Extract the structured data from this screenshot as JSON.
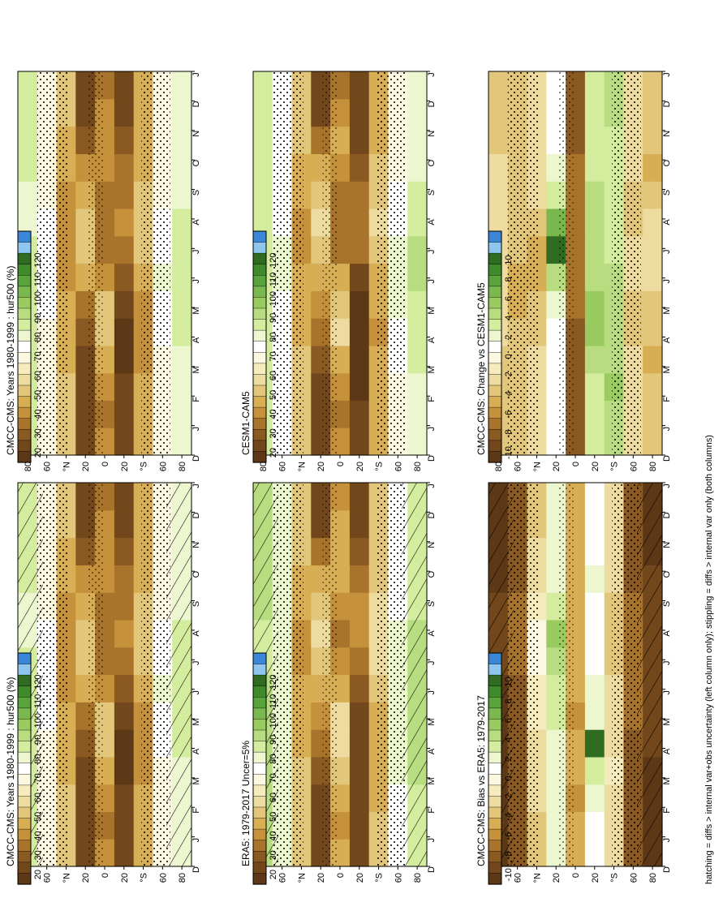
{
  "footnote": "hatching = diffs > internal var+obs uncertainty (left column only); stippling = diffs > internal var only (both columns)",
  "colorbars": [
    {
      "ticks": [
        "120",
        "110",
        "100",
        "90",
        "80",
        "70",
        "60",
        "50",
        "40",
        "30",
        "20"
      ],
      "colors": [
        "#3b86d6",
        "#8ec6ee",
        "#2f6b20",
        "#3f8a2a",
        "#58a33c",
        "#7ab84f",
        "#9acb60",
        "#b7dd80",
        "#d3ec9e",
        "#ecf7cf",
        "#ffffff",
        "#fbf7e0",
        "#f6ebbc",
        "#eddba0",
        "#e2c67a",
        "#d8ae55",
        "#c5913a",
        "#a8742b",
        "#8b5a22",
        "#72471b",
        "#5d3816"
      ]
    },
    {
      "ticks": [
        "10",
        "8",
        "6",
        "4",
        "2",
        "0",
        "-2",
        "-4",
        "-6",
        "-8",
        "-10"
      ],
      "colors": [
        "#3b86d6",
        "#8ec6ee",
        "#2f6b20",
        "#3f8a2a",
        "#58a33c",
        "#7ab84f",
        "#9acb60",
        "#b7dd80",
        "#d3ec9e",
        "#ecf7cf",
        "#ffffff",
        "#fbf7e0",
        "#f6ebbc",
        "#eddba0",
        "#e2c67a",
        "#d8ae55",
        "#c5913a",
        "#a8742b",
        "#8b5a22",
        "#72471b",
        "#5d3816"
      ]
    }
  ],
  "axes": {
    "lat_ticks": [
      "80",
      "60",
      "°N",
      "20",
      "0",
      "20",
      "°S",
      "60",
      "80"
    ],
    "month_ticks": [
      "D",
      "J",
      "F",
      "M",
      "A",
      "M",
      "J",
      "J",
      "A",
      "S",
      "O",
      "N",
      "D",
      "J"
    ]
  },
  "chart_data": [
    {
      "type": "heatmap",
      "title": "CMCC-CMS: Years 1980-1999 : hur500 (%)",
      "colorbar": 0,
      "x": [
        "J",
        "F",
        "M",
        "A",
        "M",
        "J",
        "J",
        "A",
        "S",
        "O",
        "N",
        "D"
      ],
      "y": [
        -80,
        -60,
        -40,
        -20,
        0,
        20,
        40,
        60,
        80
      ],
      "values": [
        [
          80,
          80,
          82,
          84,
          84,
          86,
          86,
          84,
          82,
          80,
          80,
          80
        ],
        [
          70,
          70,
          72,
          74,
          76,
          78,
          76,
          74,
          72,
          70,
          70,
          70
        ],
        [
          50,
          48,
          46,
          44,
          46,
          50,
          54,
          56,
          54,
          52,
          50,
          50
        ],
        [
          30,
          28,
          26,
          26,
          28,
          34,
          40,
          44,
          42,
          38,
          34,
          30
        ],
        [
          40,
          44,
          50,
          56,
          54,
          46,
          40,
          38,
          40,
          44,
          46,
          44
        ],
        [
          28,
          30,
          32,
          36,
          42,
          48,
          54,
          56,
          52,
          46,
          36,
          30
        ],
        [
          54,
          54,
          52,
          50,
          48,
          46,
          44,
          44,
          46,
          50,
          52,
          54
        ],
        [
          72,
          72,
          72,
          72,
          74,
          76,
          76,
          74,
          72,
          72,
          72,
          72
        ],
        [
          84,
          84,
          84,
          84,
          84,
          84,
          84,
          82,
          82,
          84,
          84,
          84
        ]
      ],
      "hatching": true,
      "stippling": true
    },
    {
      "type": "heatmap",
      "title": "CMCC-CMS: Years 1980-1999 : hur500 (%)",
      "colorbar": 0,
      "x": [
        "J",
        "F",
        "M",
        "A",
        "M",
        "J",
        "J",
        "A",
        "S",
        "O",
        "N",
        "D"
      ],
      "y": [
        -80,
        -60,
        -40,
        -20,
        0,
        20,
        40,
        60,
        80
      ],
      "values": [
        [
          80,
          80,
          82,
          84,
          84,
          86,
          86,
          84,
          82,
          80,
          80,
          80
        ],
        [
          70,
          70,
          72,
          74,
          76,
          78,
          76,
          74,
          72,
          70,
          70,
          70
        ],
        [
          50,
          48,
          46,
          44,
          46,
          50,
          54,
          56,
          54,
          52,
          50,
          50
        ],
        [
          30,
          28,
          26,
          26,
          28,
          34,
          40,
          44,
          42,
          38,
          34,
          30
        ],
        [
          40,
          44,
          50,
          56,
          54,
          46,
          40,
          38,
          40,
          44,
          46,
          44
        ],
        [
          28,
          30,
          32,
          36,
          42,
          48,
          54,
          56,
          52,
          46,
          36,
          30
        ],
        [
          54,
          54,
          52,
          50,
          48,
          46,
          44,
          44,
          46,
          50,
          52,
          54
        ],
        [
          72,
          72,
          72,
          72,
          74,
          76,
          76,
          74,
          72,
          72,
          72,
          72
        ],
        [
          84,
          84,
          84,
          84,
          84,
          84,
          84,
          82,
          82,
          84,
          84,
          84
        ]
      ],
      "hatching": false,
      "stippling": true
    },
    {
      "type": "heatmap",
      "title": "ERA5: 1979-2017 Uncer=5%",
      "colorbar": 0,
      "x": [
        "J",
        "F",
        "M",
        "A",
        "M",
        "J",
        "J",
        "A",
        "S",
        "O",
        "N",
        "D"
      ],
      "y": [
        -80,
        -60,
        -40,
        -20,
        0,
        20,
        40,
        60,
        80
      ],
      "values": [
        [
          86,
          86,
          88,
          88,
          88,
          90,
          90,
          88,
          86,
          86,
          86,
          86
        ],
        [
          76,
          76,
          78,
          80,
          80,
          82,
          80,
          78,
          76,
          76,
          76,
          76
        ],
        [
          54,
          52,
          50,
          48,
          50,
          54,
          58,
          60,
          58,
          56,
          54,
          54
        ],
        [
          32,
          30,
          28,
          28,
          30,
          36,
          42,
          46,
          44,
          40,
          36,
          32
        ],
        [
          44,
          48,
          54,
          60,
          58,
          50,
          44,
          42,
          44,
          48,
          50,
          48
        ],
        [
          30,
          32,
          34,
          38,
          44,
          50,
          56,
          58,
          54,
          48,
          38,
          32
        ],
        [
          56,
          56,
          54,
          52,
          50,
          48,
          46,
          46,
          48,
          52,
          54,
          56
        ],
        [
          78,
          78,
          78,
          78,
          80,
          82,
          82,
          80,
          78,
          78,
          78,
          78
        ],
        [
          90,
          90,
          90,
          90,
          88,
          88,
          86,
          86,
          88,
          90,
          90,
          90
        ]
      ],
      "hatching": true,
      "stippling": true
    },
    {
      "type": "heatmap",
      "title": "CESM1-CAM5",
      "colorbar": 0,
      "x": [
        "J",
        "F",
        "M",
        "A",
        "M",
        "J",
        "J",
        "A",
        "S",
        "O",
        "N",
        "D"
      ],
      "y": [
        -80,
        -60,
        -40,
        -20,
        0,
        20,
        40,
        60,
        80
      ],
      "values": [
        [
          82,
          82,
          84,
          86,
          86,
          88,
          88,
          86,
          84,
          82,
          82,
          82
        ],
        [
          72,
          72,
          74,
          76,
          78,
          80,
          78,
          76,
          74,
          72,
          72,
          72
        ],
        [
          52,
          50,
          48,
          46,
          48,
          52,
          56,
          58,
          56,
          54,
          52,
          52
        ],
        [
          28,
          26,
          24,
          24,
          26,
          32,
          38,
          42,
          40,
          36,
          32,
          28
        ],
        [
          42,
          46,
          52,
          58,
          56,
          48,
          42,
          40,
          42,
          46,
          48,
          46
        ],
        [
          30,
          32,
          34,
          38,
          44,
          50,
          56,
          58,
          54,
          48,
          38,
          32
        ],
        [
          56,
          56,
          54,
          52,
          50,
          48,
          46,
          46,
          48,
          52,
          54,
          56
        ],
        [
          74,
          74,
          74,
          74,
          76,
          78,
          78,
          76,
          74,
          74,
          74,
          74
        ],
        [
          86,
          86,
          86,
          86,
          86,
          86,
          86,
          84,
          84,
          86,
          86,
          86
        ]
      ],
      "hatching": false,
      "stippling": true
    },
    {
      "type": "heatmap",
      "title": "CMCC-CMS: Bias vs ERA5: 1979-2017",
      "colorbar": 1,
      "x": [
        "J",
        "F",
        "M",
        "A",
        "M",
        "J",
        "J",
        "A",
        "S",
        "O",
        "N",
        "D"
      ],
      "y": [
        -80,
        -60,
        -40,
        -20,
        0,
        20,
        40,
        60,
        80
      ],
      "values": [
        [
          -9,
          -9,
          -9,
          -8,
          -8,
          -8,
          -8,
          -8,
          -8,
          -8,
          -9,
          -9
        ],
        [
          -7,
          -7,
          -7,
          -7,
          -6,
          -6,
          -6,
          -6,
          -6,
          -7,
          -7,
          -7
        ],
        [
          -2,
          -2,
          -1,
          -2,
          -2,
          -2,
          -3,
          -3,
          -3,
          -2,
          -2,
          -2
        ],
        [
          1,
          2,
          3,
          9,
          2,
          2,
          1,
          1,
          1,
          2,
          1,
          1
        ],
        [
          -4,
          -5,
          -4,
          -4,
          -5,
          -4,
          -4,
          -4,
          -4,
          -4,
          -4,
          -4
        ],
        [
          2,
          2,
          2,
          2,
          3,
          3,
          4,
          5,
          3,
          2,
          2,
          2
        ],
        [
          -3,
          -2,
          -2,
          -2,
          -1,
          -1,
          0,
          0,
          -1,
          -2,
          -2,
          -3
        ],
        [
          -7,
          -7,
          -7,
          -7,
          -7,
          -7,
          -6,
          -6,
          -6,
          -7,
          -7,
          -7
        ],
        [
          -9,
          -9,
          -9,
          -9,
          -9,
          -9,
          -8,
          -8,
          -8,
          -9,
          -9,
          -9
        ]
      ],
      "hatching": true,
      "stippling": true
    },
    {
      "type": "heatmap",
      "title": "CMCC-CMS: Change vs CESM1-CAM5",
      "colorbar": 1,
      "x": [
        "J",
        "F",
        "M",
        "A",
        "M",
        "J",
        "J",
        "A",
        "S",
        "O",
        "N",
        "D"
      ],
      "y": [
        -80,
        -60,
        -40,
        -20,
        0,
        20,
        40,
        60,
        80
      ],
      "values": [
        [
          -3,
          -3,
          -4,
          -3,
          -3,
          -2,
          -2,
          -2,
          -3,
          -4,
          -3,
          -3
        ],
        [
          -2,
          -2,
          -2,
          -3,
          -3,
          -2,
          -2,
          -3,
          -3,
          -2,
          -2,
          -2
        ],
        [
          4,
          5,
          4,
          4,
          4,
          4,
          3,
          3,
          3,
          3,
          3,
          4
        ],
        [
          3,
          3,
          4,
          5,
          5,
          4,
          4,
          4,
          4,
          3,
          3,
          3
        ],
        [
          -7,
          -7,
          -7,
          -7,
          -6,
          -6,
          -6,
          -6,
          -6,
          -6,
          -7,
          -7
        ],
        [
          1,
          1,
          1,
          1,
          2,
          4,
          9,
          6,
          3,
          2,
          1,
          1
        ],
        [
          -2,
          -2,
          -2,
          -3,
          -3,
          -4,
          -4,
          -3,
          -2,
          -2,
          -2,
          -2
        ],
        [
          -3,
          -3,
          -3,
          -3,
          -4,
          -4,
          -3,
          -3,
          -3,
          -3,
          -3,
          -3
        ],
        [
          -3,
          -3,
          -3,
          -2,
          -2,
          -2,
          -2,
          -2,
          -2,
          -2,
          -3,
          -3
        ]
      ],
      "hatching": false,
      "stippling": true
    }
  ]
}
